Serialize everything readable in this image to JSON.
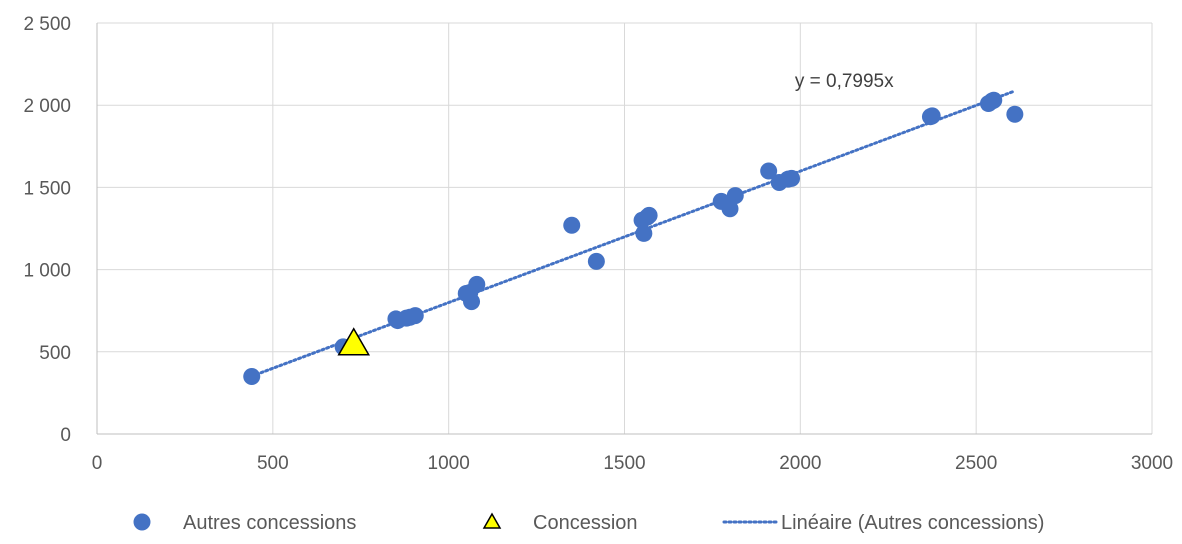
{
  "chart_data": {
    "type": "scatter",
    "title": "",
    "xlabel": "",
    "ylabel": "",
    "xlim": [
      0,
      3000
    ],
    "ylim": [
      0,
      2500
    ],
    "x_ticks": [
      0,
      500,
      1000,
      1500,
      2000,
      2500,
      3000
    ],
    "x_tick_labels": [
      "0",
      "500",
      "1000",
      "1500",
      "2000",
      "2500",
      "3000"
    ],
    "y_ticks": [
      0,
      500,
      1000,
      1500,
      2000,
      2500
    ],
    "y_tick_labels": [
      "0",
      "500",
      "1 000",
      "1 500",
      "2 000",
      "2 500"
    ],
    "grid": "vertical and horizontal major gridlines",
    "legend_position": "bottom",
    "series": [
      {
        "name": "Autres concessions",
        "marker": "circle",
        "color": "#4472c4",
        "points": [
          [
            440,
            350
          ],
          [
            700,
            530
          ],
          [
            850,
            700
          ],
          [
            855,
            690
          ],
          [
            880,
            705
          ],
          [
            890,
            710
          ],
          [
            905,
            720
          ],
          [
            1050,
            855
          ],
          [
            1060,
            860
          ],
          [
            1065,
            805
          ],
          [
            1080,
            910
          ],
          [
            1350,
            1270
          ],
          [
            1420,
            1050
          ],
          [
            1550,
            1300
          ],
          [
            1555,
            1220
          ],
          [
            1565,
            1320
          ],
          [
            1570,
            1330
          ],
          [
            1775,
            1415
          ],
          [
            1800,
            1370
          ],
          [
            1815,
            1450
          ],
          [
            1910,
            1600
          ],
          [
            1940,
            1530
          ],
          [
            1965,
            1550
          ],
          [
            1975,
            1555
          ],
          [
            2370,
            1930
          ],
          [
            2375,
            1935
          ],
          [
            2535,
            2010
          ],
          [
            2545,
            2025
          ],
          [
            2550,
            2030
          ],
          [
            2610,
            1945
          ]
        ]
      },
      {
        "name": "Concession",
        "marker": "triangle",
        "color": "#ffff00",
        "edge_color": "#000000",
        "points": [
          [
            730,
            545
          ]
        ]
      },
      {
        "name": "Linéaire (Autres concessions)",
        "type": "trendline",
        "style": "dotted",
        "color": "#4472c4",
        "slope": 0.7995,
        "x_range": [
          440,
          2610
        ],
        "equation": "y = 0,7995x"
      }
    ]
  }
}
